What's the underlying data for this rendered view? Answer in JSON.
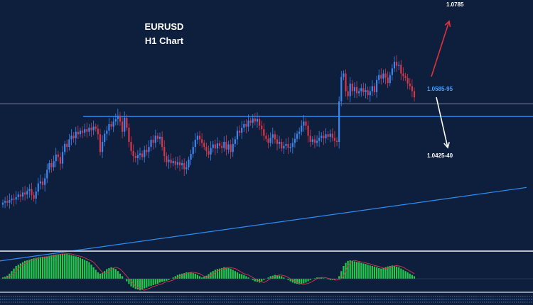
{
  "chart_data": {
    "type": "candlestick",
    "title": "EURUSD",
    "subtitle": "H1 Chart",
    "colors": {
      "background": "#0d1f3c",
      "bull": "#3d86f0",
      "bear": "#d8374a",
      "support_line": "#2f8df2",
      "resistance_line": "#8d97a8",
      "trendline": "#2f8df2",
      "arrow_up": "#e0323c",
      "arrow_down": "#ffffff",
      "oscillator": "#22c94a",
      "signal": "#d8374a",
      "separator": "#b8bfc9",
      "label_support": "#4da3ff",
      "label_other": "#ffffff"
    },
    "levels": [
      {
        "label": "1.0785",
        "kind": "target-up",
        "price": 1.0785
      },
      {
        "label": "1.0585-95",
        "kind": "support",
        "price": 1.059
      },
      {
        "label": "1.0425-40",
        "kind": "target-down",
        "price": 1.0432
      }
    ],
    "resistance_price": 1.0615,
    "ylim": [
      1.033,
      1.082
    ],
    "trendline": {
      "from_price": 1.0305,
      "to_price": 1.045
    },
    "closes": [
      1.042,
      1.0423,
      1.042,
      1.0425,
      1.0428,
      1.0426,
      1.0431,
      1.0436,
      1.0432,
      1.044,
      1.0436,
      1.0443,
      1.0447,
      1.0435,
      1.0428,
      1.0442,
      1.0458,
      1.0462,
      1.0455,
      1.0468,
      1.0485,
      1.0498,
      1.049,
      1.0502,
      1.0515,
      1.051,
      1.0497,
      1.052,
      1.0536,
      1.053,
      1.0545,
      1.0552,
      1.0547,
      1.056,
      1.0555,
      1.0562,
      1.0558,
      1.0565,
      1.056,
      1.0568,
      1.0563,
      1.057,
      1.0566,
      1.0555,
      1.052,
      1.054,
      1.0556,
      1.0562,
      1.0575,
      1.057,
      1.058,
      1.0585,
      1.0592,
      1.058,
      1.056,
      1.0588,
      1.0568,
      1.054,
      1.0522,
      1.0512,
      1.0508,
      1.0514,
      1.0517,
      1.051,
      1.0524,
      1.052,
      1.053,
      1.0544,
      1.0538,
      1.0552,
      1.0546,
      1.055,
      1.053,
      1.0512,
      1.05,
      1.0505,
      1.0498,
      1.0502,
      1.0495,
      1.05,
      1.0494,
      1.0498,
      1.0486,
      1.049,
      1.0505,
      1.0516,
      1.053,
      1.0544,
      1.0552,
      1.0545,
      1.0538,
      1.053,
      1.0522,
      1.0515,
      1.0528,
      1.0535,
      1.0527,
      1.0537,
      1.0532,
      1.0528,
      1.054,
      1.0525,
      1.0535,
      1.052,
      1.0536,
      1.0545,
      1.0562,
      1.0558,
      1.0568,
      1.0575,
      1.057,
      1.0582,
      1.0578,
      1.0586,
      1.058,
      1.0585,
      1.0572,
      1.0565,
      1.0552,
      1.0546,
      1.0538,
      1.0548,
      1.0555,
      1.0545,
      1.0536,
      1.054,
      1.0527,
      1.0532,
      1.0536,
      1.0528,
      1.053,
      1.0538,
      1.0546,
      1.0556,
      1.056,
      1.0572,
      1.058,
      1.0572,
      1.0552,
      1.054,
      1.0545,
      1.0538,
      1.0542,
      1.0548,
      1.0552,
      1.0547,
      1.0555,
      1.055,
      1.0556,
      1.0548,
      1.0542,
      1.054,
      1.062,
      1.0668,
      1.0675,
      1.064,
      1.063,
      1.0655,
      1.064,
      1.0648,
      1.0636,
      1.064,
      1.0646,
      1.0638,
      1.0642,
      1.0632,
      1.064,
      1.065,
      1.0638,
      1.0662,
      1.0672,
      1.0665,
      1.0675,
      1.0667,
      1.0656,
      1.0672,
      1.0685,
      1.0698,
      1.069,
      1.0692,
      1.0675,
      1.067,
      1.0666,
      1.0655,
      1.065,
      1.064,
      1.0628
    ],
    "oscillator": [
      0.05,
      0.08,
      0.12,
      0.2,
      0.3,
      0.4,
      0.5,
      0.55,
      0.6,
      0.65,
      0.7,
      0.72,
      0.75,
      0.78,
      0.8,
      0.82,
      0.84,
      0.85,
      0.86,
      0.87,
      0.88,
      0.9,
      0.92,
      0.94,
      0.95,
      0.96,
      0.97,
      0.98,
      0.98,
      0.97,
      0.95,
      0.92,
      0.9,
      0.88,
      0.86,
      0.82,
      0.78,
      0.74,
      0.7,
      0.65,
      0.55,
      0.45,
      0.35,
      0.25,
      0.2,
      0.22,
      0.3,
      0.38,
      0.42,
      0.45,
      0.42,
      0.38,
      0.3,
      0.2,
      0.1,
      0.0,
      -0.1,
      -0.2,
      -0.3,
      -0.35,
      -0.4,
      -0.42,
      -0.45,
      -0.42,
      -0.38,
      -0.35,
      -0.3,
      -0.28,
      -0.25,
      -0.22,
      -0.2,
      -0.15,
      -0.12,
      -0.1,
      -0.08,
      -0.05,
      0.0,
      0.05,
      0.1,
      0.15,
      0.18,
      0.2,
      0.22,
      0.25,
      0.25,
      0.24,
      0.22,
      0.2,
      0.15,
      0.1,
      0.05,
      0.08,
      0.12,
      0.18,
      0.25,
      0.3,
      0.35,
      0.38,
      0.4,
      0.42,
      0.45,
      0.44,
      0.42,
      0.4,
      0.35,
      0.3,
      0.25,
      0.2,
      0.18,
      0.15,
      0.1,
      0.05,
      0.0,
      -0.05,
      -0.1,
      -0.12,
      -0.15,
      -0.1,
      -0.05,
      0.0,
      0.05,
      0.1,
      0.12,
      0.15,
      0.14,
      0.12,
      0.1,
      0.05,
      0.0,
      -0.05,
      -0.1,
      -0.15,
      -0.18,
      -0.2,
      -0.22,
      -0.2,
      -0.18,
      -0.15,
      -0.1,
      -0.05,
      0.0,
      0.02,
      0.05,
      0.05,
      0.04,
      0.02,
      0.0,
      -0.02,
      -0.05,
      -0.05,
      -0.03,
      0.0,
      0.1,
      0.3,
      0.5,
      0.62,
      0.7,
      0.72,
      0.7,
      0.68,
      0.66,
      0.65,
      0.62,
      0.6,
      0.58,
      0.55,
      0.52,
      0.5,
      0.48,
      0.45,
      0.42,
      0.4,
      0.42,
      0.45,
      0.48,
      0.5,
      0.52,
      0.5,
      0.48,
      0.45,
      0.4,
      0.35,
      0.3,
      0.25,
      0.2,
      0.15,
      0.1
    ]
  }
}
